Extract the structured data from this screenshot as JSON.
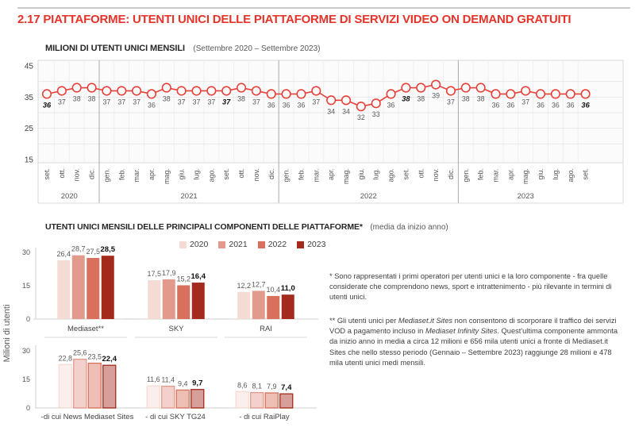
{
  "page_title": "2.17 PIATTAFORME: UTENTI UNICI DELLE PIATTAFORME DI SERVIZI VIDEO ON DEMAND GRATUITI",
  "colors": {
    "title_red": "#e5332a",
    "line_red": "#e8413a",
    "year_colors": [
      "#f4dcd4",
      "#e29a8d",
      "#d8705c",
      "#a32a1d"
    ],
    "grid": "#e9e9e9",
    "separator": "#ababab",
    "axis_line": "#d9d9d9"
  },
  "chart_data": [
    {
      "type": "line",
      "title": "MILIONI DI UTENTI UNICI MENSILI",
      "subtitle": "(Settembre 2020 – Settembre 2023)",
      "ylim": [
        15,
        45
      ],
      "y_ticks": [
        45,
        35,
        25,
        15
      ],
      "grid": true,
      "groups": [
        {
          "year": "2020",
          "months": [
            "set.",
            "ott.",
            "nov.",
            "dic."
          ],
          "values": [
            36,
            37,
            38,
            38
          ]
        },
        {
          "year": "2021",
          "months": [
            "gen.",
            "feb.",
            "mar.",
            "apr.",
            "mag.",
            "giu.",
            "lug.",
            "ago.",
            "set.",
            "ott.",
            "nov.",
            "dic."
          ],
          "values": [
            37,
            37,
            37,
            36,
            38,
            37,
            37,
            37,
            37,
            38,
            37,
            36
          ]
        },
        {
          "year": "2022",
          "months": [
            "gen.",
            "feb.",
            "mar.",
            "apr.",
            "mag.",
            "giu.",
            "lug.",
            "ago.",
            "set.",
            "ott.",
            "nov.",
            "dic."
          ],
          "values": [
            36,
            36,
            37,
            34,
            34,
            32,
            33,
            36,
            38,
            38,
            39,
            37
          ]
        },
        {
          "year": "2023",
          "months": [
            "gen.",
            "feb.",
            "mar.",
            "apr.",
            "mag.",
            "giu.",
            "lug.",
            "ago.",
            "set."
          ],
          "values": [
            38,
            38,
            36,
            36,
            37,
            36,
            36,
            36,
            36
          ]
        }
      ],
      "bold_indices": [
        0,
        12,
        24,
        36
      ]
    },
    {
      "type": "bar",
      "title": "UTENTI UNICI MENSILI DELLE PRINCIPALI COMPONENTI DELLE PIATTAFORME*",
      "subtitle": "(media da inizio anno)",
      "ylabel": "Milioni di utenti",
      "ylim": [
        0,
        32
      ],
      "y_ticks": [
        30,
        15,
        0
      ],
      "legend": [
        "2020",
        "2021",
        "2022",
        "2023"
      ],
      "rows": [
        {
          "style": "solid",
          "groups": [
            {
              "label": "Mediaset**",
              "values": [
                "26,4",
                "28,7",
                "27,5",
                "28,5"
              ]
            },
            {
              "label": "SKY",
              "values": [
                "17,5",
                "17,9",
                "15,2",
                "16,4"
              ]
            },
            {
              "label": "RAI",
              "values": [
                "12,2",
                "12,7",
                "10,4",
                "11,0"
              ]
            }
          ]
        },
        {
          "style": "outline",
          "groups": [
            {
              "label": "-di cui News Mediaset Sites",
              "values": [
                "22,8",
                "25,6",
                "23,5",
                "22,4"
              ]
            },
            {
              "label": "- di cui SKY TG24",
              "values": [
                "11,6",
                "11,4",
                "9,4",
                "9,7"
              ]
            },
            {
              "label": "- di cui RaiPlay",
              "values": [
                "8,6",
                "8,1",
                "7,9",
                "7,4"
              ]
            }
          ]
        }
      ]
    }
  ],
  "notes": {
    "note1": "* Sono rappresentati i primi operatori per utenti unici e la loro componente - fra quelle considerate che comprendono news, sport e intrattenimento - più rilevante in termini di utenti unici.",
    "note2_segments": [
      {
        "t": "** Gli utenti unici per ",
        "i": false
      },
      {
        "t": "Mediaset.it Sites",
        "i": true
      },
      {
        "t": " non consentono di scorporare il traffico dei servizi VOD a pagamento incluso in ",
        "i": false
      },
      {
        "t": "Mediaset Infinity Sites",
        "i": true
      },
      {
        "t": ". Quest'ultima componente ammonta da inizio anno in media a circa 12 milioni e 656 mila utenti unici a fronte di Mediaset.it Sites che nello stesso periodo (Gennaio – Settembre 2023) raggiunge 28 milioni e 478 mila utenti unici medi mensili.",
        "i": false
      }
    ]
  }
}
